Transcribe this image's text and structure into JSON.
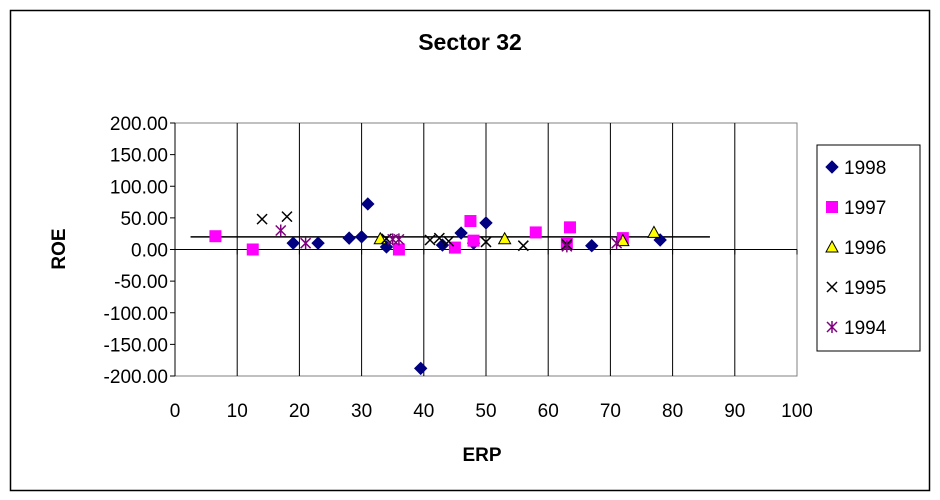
{
  "chart_data": {
    "type": "scatter",
    "title": "Sector 32",
    "xlabel": "ERP",
    "ylabel": "ROE",
    "xlim": [
      0,
      100
    ],
    "ylim": [
      -200,
      200
    ],
    "x_ticks": [
      "0",
      "10",
      "20",
      "30",
      "40",
      "50",
      "60",
      "70",
      "80",
      "90",
      "100"
    ],
    "y_ticks": [
      "200.00",
      "150.00",
      "100.00",
      "50.00",
      "0.00",
      "-50.00",
      "-100.00",
      "-150.00",
      "-200.00"
    ],
    "grid": "vertical",
    "legend_position": "right",
    "trendline": {
      "x": [
        2.5,
        86
      ],
      "y": [
        20,
        20
      ]
    },
    "series": [
      {
        "name": "1998",
        "marker": "diamond",
        "color": "#000080",
        "points": [
          [
            19,
            10
          ],
          [
            23,
            10
          ],
          [
            28,
            18
          ],
          [
            30,
            20
          ],
          [
            31,
            72
          ],
          [
            34,
            4
          ],
          [
            39.5,
            -188
          ],
          [
            43,
            7
          ],
          [
            46,
            26
          ],
          [
            48,
            10
          ],
          [
            50,
            42
          ],
          [
            67,
            6
          ],
          [
            78,
            15
          ]
        ]
      },
      {
        "name": "1997",
        "marker": "square",
        "color": "#ff00ff",
        "points": [
          [
            6.5,
            21
          ],
          [
            12.5,
            0
          ],
          [
            36,
            0
          ],
          [
            45,
            3
          ],
          [
            47.5,
            45
          ],
          [
            48,
            14
          ],
          [
            58,
            27
          ],
          [
            63,
            10
          ],
          [
            63.5,
            35
          ],
          [
            72,
            18
          ]
        ]
      },
      {
        "name": "1996",
        "marker": "triangle",
        "color": "#ffff00",
        "points": [
          [
            33,
            17
          ],
          [
            53,
            17
          ],
          [
            72,
            14
          ],
          [
            77,
            27
          ]
        ]
      },
      {
        "name": "1995",
        "marker": "x",
        "color": "#000000",
        "points": [
          [
            14,
            48
          ],
          [
            18,
            52
          ],
          [
            34,
            17
          ],
          [
            41,
            15
          ],
          [
            42.5,
            18
          ],
          [
            44,
            13
          ],
          [
            50,
            12
          ],
          [
            56,
            6
          ],
          [
            63,
            8
          ]
        ]
      },
      {
        "name": "1994",
        "marker": "asterisk",
        "color": "#800080",
        "points": [
          [
            17,
            30
          ],
          [
            21,
            10
          ],
          [
            35,
            16
          ],
          [
            36,
            16
          ],
          [
            63,
            5
          ],
          [
            71,
            10
          ]
        ]
      }
    ]
  }
}
